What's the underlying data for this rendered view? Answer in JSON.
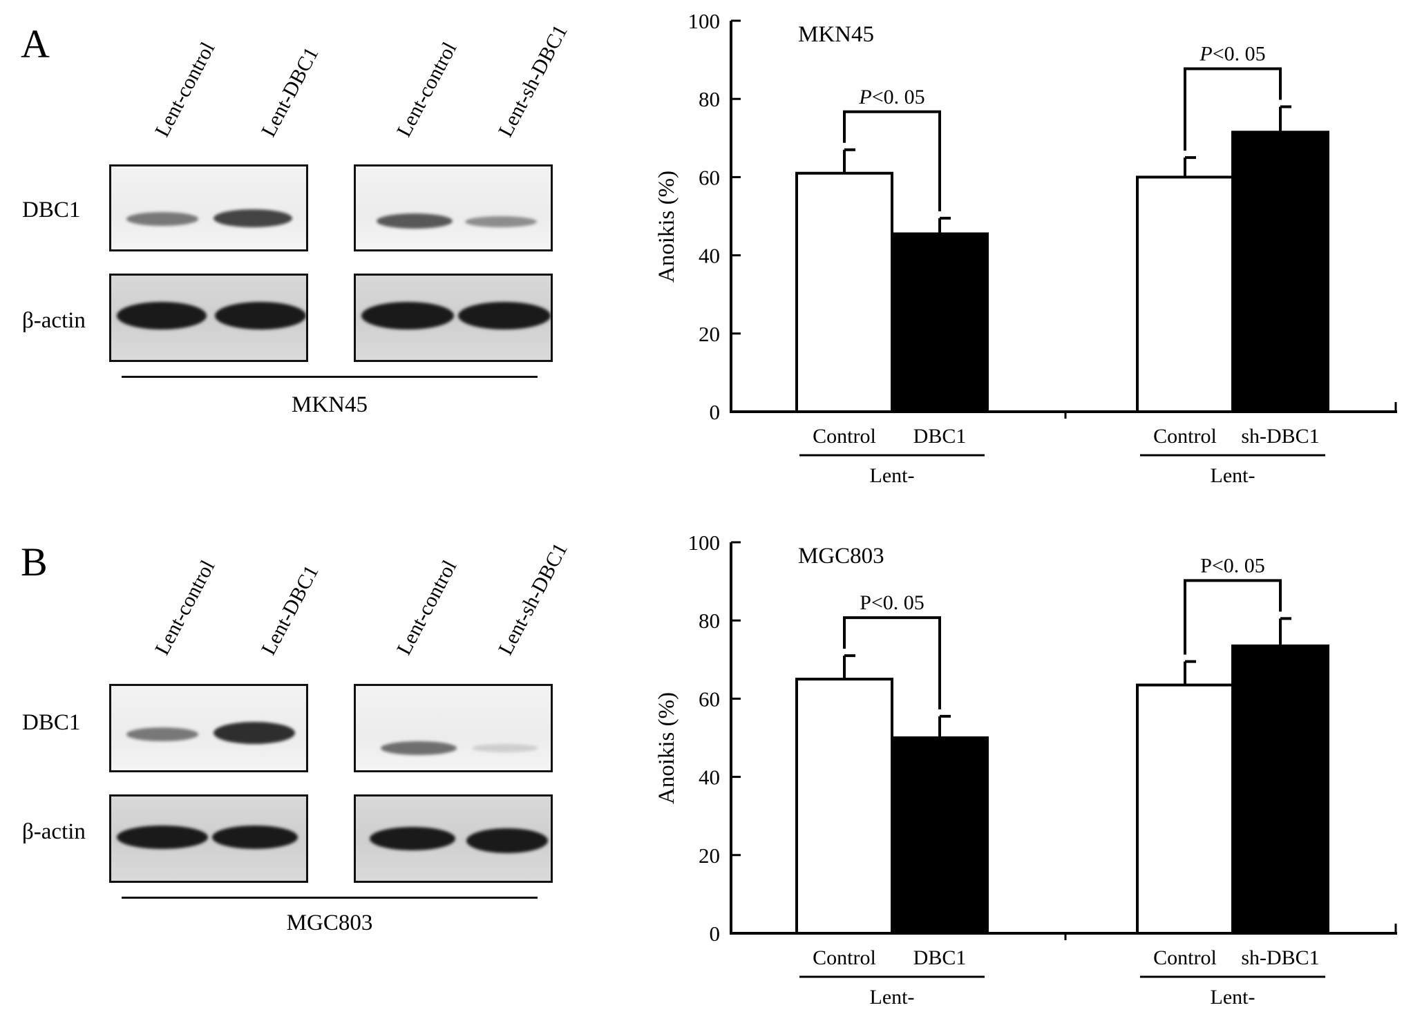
{
  "panels": [
    {
      "letter": "A",
      "cell_line": "MKN45",
      "blot": {
        "row_labels": [
          "DBC1",
          "β-actin"
        ],
        "lane_labels_left": [
          "Lent-control",
          "Lent-DBC1"
        ],
        "lane_labels_right": [
          "Lent-control",
          "Lent-sh-DBC1"
        ],
        "band_intensity": {
          "dbc1_left": [
            0.55,
            0.8
          ],
          "dbc1_right": [
            0.7,
            0.45
          ],
          "actin_left": [
            1.0,
            1.0
          ],
          "actin_right": [
            1.0,
            1.0
          ]
        }
      },
      "chart_data": {
        "type": "bar",
        "title": "MKN45",
        "ylabel": "Anoikis (%)",
        "ylim": [
          0,
          100
        ],
        "yticks": [
          0,
          20,
          40,
          60,
          80,
          100
        ],
        "groups": [
          {
            "group_label": "Lent-",
            "categories": [
              "Control",
              "DBC1"
            ],
            "values": [
              61,
              45.5
            ],
            "errors": [
              6,
              4
            ],
            "colors": [
              "#ffffff",
              "#000000"
            ],
            "significance": {
              "prefix": "P",
              "text": "<0. 05",
              "italic": true
            }
          },
          {
            "group_label": "Lent-",
            "categories": [
              "Control",
              "sh-DBC1"
            ],
            "values": [
              60,
              71.5
            ],
            "errors": [
              5,
              6.5
            ],
            "colors": [
              "#ffffff",
              "#000000"
            ],
            "significance": {
              "prefix": "P",
              "text": "<0. 05",
              "italic": true
            }
          }
        ]
      }
    },
    {
      "letter": "B",
      "cell_line": "MGC803",
      "blot": {
        "row_labels": [
          "DBC1",
          "β-actin"
        ],
        "lane_labels_left": [
          "Lent-control",
          "Lent-DBC1"
        ],
        "lane_labels_right": [
          "Lent-control",
          "Lent-sh-DBC1"
        ],
        "band_intensity": {
          "dbc1_left": [
            0.55,
            0.9
          ],
          "dbc1_right": [
            0.6,
            0.15
          ],
          "actin_left": [
            1.0,
            1.0
          ],
          "actin_right": [
            1.0,
            1.0
          ]
        }
      },
      "chart_data": {
        "type": "bar",
        "title": "MGC803",
        "ylabel": "Anoikis (%)",
        "ylim": [
          0,
          100
        ],
        "yticks": [
          0,
          20,
          40,
          60,
          80,
          100
        ],
        "groups": [
          {
            "group_label": "Lent-",
            "categories": [
              "Control",
              "DBC1"
            ],
            "values": [
              65,
              50
            ],
            "errors": [
              6,
              5.5
            ],
            "colors": [
              "#ffffff",
              "#000000"
            ],
            "significance": {
              "prefix": "P",
              "text": "<0. 05",
              "italic": false
            }
          },
          {
            "group_label": "Lent-",
            "categories": [
              "Control",
              "sh-DBC1"
            ],
            "values": [
              63.5,
              73.5
            ],
            "errors": [
              6,
              7
            ],
            "colors": [
              "#ffffff",
              "#000000"
            ],
            "significance": {
              "prefix": "P",
              "text": "<0. 05",
              "italic": false
            }
          }
        ]
      }
    }
  ]
}
